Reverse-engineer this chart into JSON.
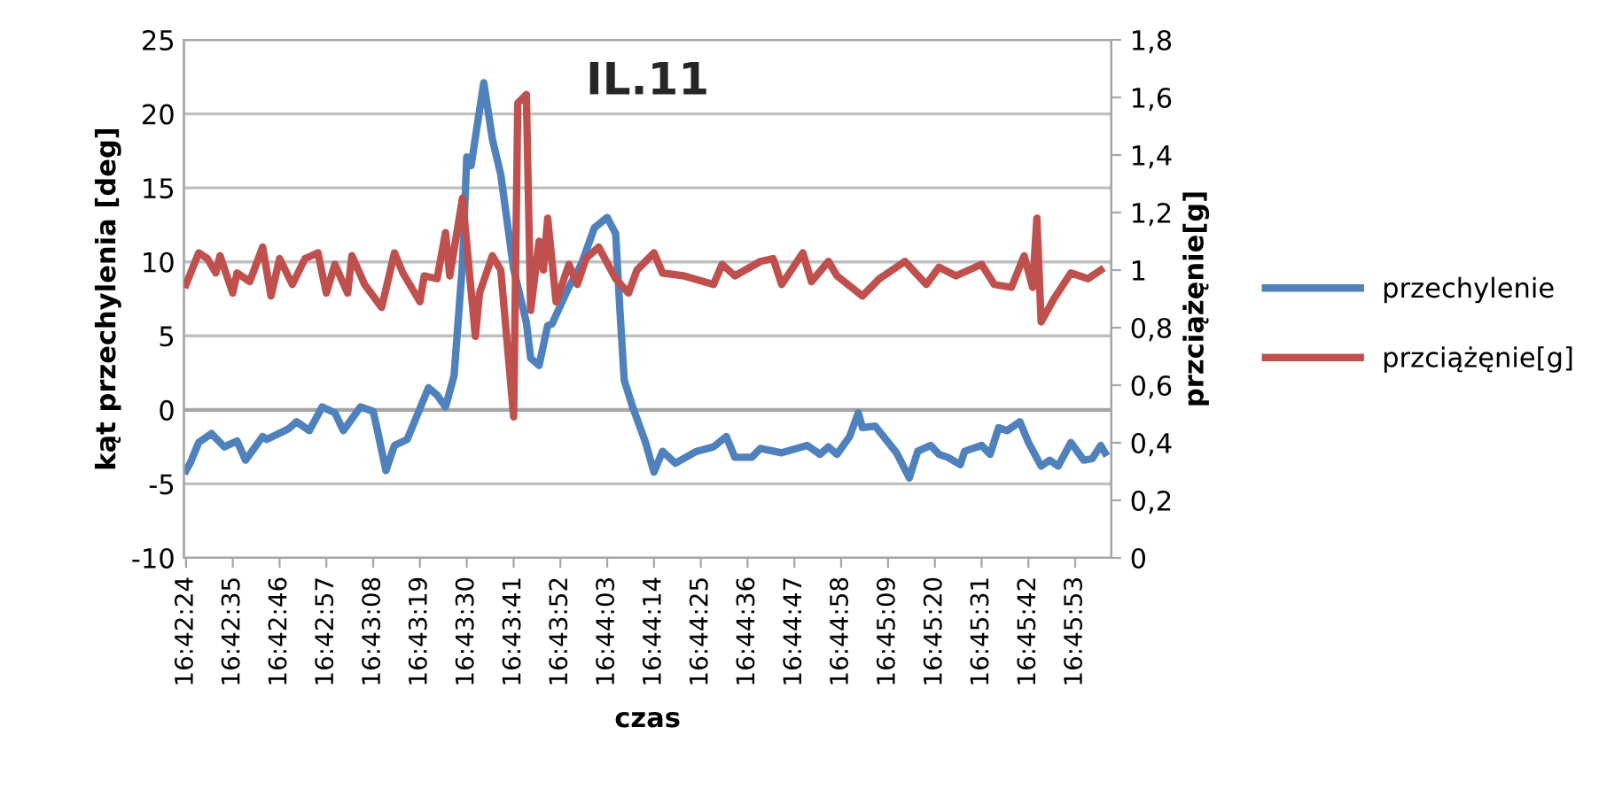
{
  "chart_data": {
    "type": "line",
    "title": "IL.11",
    "xlabel": "czas",
    "ylabel": "kąt przechylenia [deg]",
    "y2label": "przciążęnie[g]",
    "xlim": [
      16.70653,
      16.76708
    ],
    "xticks": [
      {
        "value": 16.70667,
        "label": "16:42:24"
      },
      {
        "value": 16.70972,
        "label": "16:42:35"
      },
      {
        "value": 16.71278,
        "label": "16:42:46"
      },
      {
        "value": 16.71583,
        "label": "16:42:57"
      },
      {
        "value": 16.71889,
        "label": "16:43:08"
      },
      {
        "value": 16.72194,
        "label": "16:43:19"
      },
      {
        "value": 16.725,
        "label": "16:43:30"
      },
      {
        "value": 16.72806,
        "label": "16:43:41"
      },
      {
        "value": 16.73111,
        "label": "16:43:52"
      },
      {
        "value": 16.73417,
        "label": "16:44:03"
      },
      {
        "value": 16.73722,
        "label": "16:44:14"
      },
      {
        "value": 16.74028,
        "label": "16:44:25"
      },
      {
        "value": 16.74333,
        "label": "16:44:36"
      },
      {
        "value": 16.74639,
        "label": "16:44:47"
      },
      {
        "value": 16.74944,
        "label": "16:44:58"
      },
      {
        "value": 16.7525,
        "label": "16:45:09"
      },
      {
        "value": 16.75556,
        "label": "16:45:20"
      },
      {
        "value": 16.75861,
        "label": "16:45:31"
      },
      {
        "value": 16.76167,
        "label": "16:45:42"
      },
      {
        "value": 16.76472,
        "label": "16:45:53"
      }
    ],
    "ylim": [
      -10,
      25
    ],
    "yticks": [
      -10,
      -5,
      0,
      5,
      10,
      15,
      20,
      25
    ],
    "y2lim": [
      0,
      1.8
    ],
    "y2ticks": [
      0,
      {
        "value": 0.2,
        "label": "0,2"
      },
      {
        "value": 0.4,
        "label": "0,4"
      },
      {
        "value": 0.6,
        "label": "0,6"
      },
      {
        "value": 0.8,
        "label": "0,8"
      },
      1,
      {
        "value": 1.2,
        "label": "1,2"
      },
      {
        "value": 1.4,
        "label": "1,4"
      },
      {
        "value": 1.6,
        "label": "1,6"
      },
      {
        "value": 1.8,
        "label": "1,8"
      }
    ],
    "grid": "y",
    "legend": "right",
    "marker": "none",
    "line_style": "solid",
    "ref_lines": [
      {
        "axis": "y",
        "value": 0,
        "color": "#a6a6a6"
      }
    ],
    "series": [
      {
        "name": "przechylenie",
        "color": "#4f81bd",
        "x": [
          16.70667,
          16.70694,
          16.7075,
          16.70833,
          16.70917,
          16.71,
          16.71056,
          16.71167,
          16.71194,
          16.71333,
          16.71389,
          16.71472,
          16.71556,
          16.71639,
          16.71694,
          16.71806,
          16.71889,
          16.71917,
          16.71972,
          16.72028,
          16.72111,
          16.7225,
          16.72306,
          16.72361,
          16.72417,
          16.72472,
          16.725,
          16.72528,
          16.72611,
          16.72667,
          16.72722,
          16.72806,
          16.72889,
          16.72917,
          16.72972,
          16.73028,
          16.73056,
          16.73167,
          16.7325,
          16.73333,
          16.73417,
          16.73472,
          16.735,
          16.73528,
          16.73583,
          16.73667,
          16.73722,
          16.73778,
          16.73861,
          16.74,
          16.74111,
          16.74194,
          16.7425,
          16.74361,
          16.74417,
          16.74556,
          16.74722,
          16.74806,
          16.74861,
          16.74917,
          16.75,
          16.75056,
          16.75083,
          16.75167,
          16.75306,
          16.75389,
          16.75444,
          16.75528,
          16.75583,
          16.75639,
          16.75722,
          16.7575,
          16.75861,
          16.75917,
          16.75972,
          16.76028,
          16.76111,
          16.76167,
          16.7625,
          16.76306,
          16.76361,
          16.76444,
          16.76528,
          16.76583,
          16.76639,
          16.76667
        ],
        "values": [
          -4.1,
          -3.6,
          -2.2,
          -1.6,
          -2.5,
          -2.1,
          -3.4,
          -1.8,
          -2.0,
          -1.3,
          -0.8,
          -1.4,
          0.2,
          -0.2,
          -1.4,
          0.2,
          -0.1,
          -1.4,
          -4.1,
          -2.4,
          -2.0,
          1.5,
          1.0,
          0.2,
          2.3,
          9.9,
          17.1,
          16.5,
          22.1,
          18.3,
          15.9,
          9.5,
          5.9,
          3.5,
          3.0,
          5.7,
          5.8,
          8.3,
          9.9,
          12.3,
          13.0,
          11.9,
          6.7,
          2.0,
          0.2,
          -2.2,
          -4.2,
          -2.8,
          -3.6,
          -2.8,
          -2.5,
          -1.8,
          -3.2,
          -3.2,
          -2.6,
          -2.9,
          -2.4,
          -3.0,
          -2.5,
          -3.0,
          -1.8,
          -0.2,
          -1.2,
          -1.1,
          -2.9,
          -4.6,
          -2.8,
          -2.4,
          -3.0,
          -3.2,
          -3.7,
          -2.8,
          -2.4,
          -3.0,
          -1.2,
          -1.4,
          -0.8,
          -2.2,
          -3.8,
          -3.4,
          -3.8,
          -2.2,
          -3.4,
          -3.3,
          -2.4,
          -2.9
        ]
      },
      {
        "name": "przciążęnie[g]",
        "color": "#c0504d",
        "axis": "y2",
        "x": [
          16.70667,
          16.7075,
          16.70806,
          16.70861,
          16.70889,
          16.70972,
          16.71,
          16.71083,
          16.71167,
          16.71222,
          16.71278,
          16.71361,
          16.71444,
          16.71528,
          16.71583,
          16.71639,
          16.71722,
          16.7175,
          16.71833,
          16.71944,
          16.72028,
          16.72083,
          16.72194,
          16.72222,
          16.72306,
          16.72361,
          16.72389,
          16.72472,
          16.72556,
          16.72583,
          16.72667,
          16.72722,
          16.72806,
          16.72833,
          16.72889,
          16.72917,
          16.72972,
          16.73,
          16.73028,
          16.73083,
          16.73167,
          16.73222,
          16.73278,
          16.73361,
          16.73472,
          16.73556,
          16.73611,
          16.73722,
          16.73778,
          16.73917,
          16.74111,
          16.74167,
          16.7425,
          16.74417,
          16.745,
          16.74556,
          16.74694,
          16.7475,
          16.74861,
          16.74917,
          16.75083,
          16.75194,
          16.75361,
          16.755,
          16.75583,
          16.75694,
          16.75861,
          16.75944,
          16.76056,
          16.76139,
          16.76194,
          16.76222,
          16.7625,
          16.76333,
          16.76444,
          16.76556,
          16.76639
        ],
        "values": [
          0.95,
          1.06,
          1.04,
          0.99,
          1.05,
          0.92,
          0.99,
          0.96,
          1.08,
          0.91,
          1.04,
          0.95,
          1.04,
          1.06,
          0.92,
          1.02,
          0.92,
          1.05,
          0.95,
          0.87,
          1.06,
          0.99,
          0.89,
          0.98,
          0.97,
          1.13,
          0.98,
          1.25,
          0.77,
          0.92,
          1.05,
          1.0,
          0.49,
          1.58,
          1.61,
          0.86,
          1.1,
          1.0,
          1.18,
          0.89,
          1.02,
          0.95,
          1.04,
          1.08,
          0.97,
          0.92,
          1.0,
          1.06,
          0.99,
          0.98,
          0.95,
          1.02,
          0.98,
          1.03,
          1.04,
          0.95,
          1.06,
          0.96,
          1.03,
          0.98,
          0.91,
          0.97,
          1.03,
          0.95,
          1.01,
          0.98,
          1.02,
          0.95,
          0.94,
          1.05,
          0.94,
          1.18,
          0.82,
          0.9,
          0.99,
          0.97,
          1.0
        ]
      }
    ]
  }
}
